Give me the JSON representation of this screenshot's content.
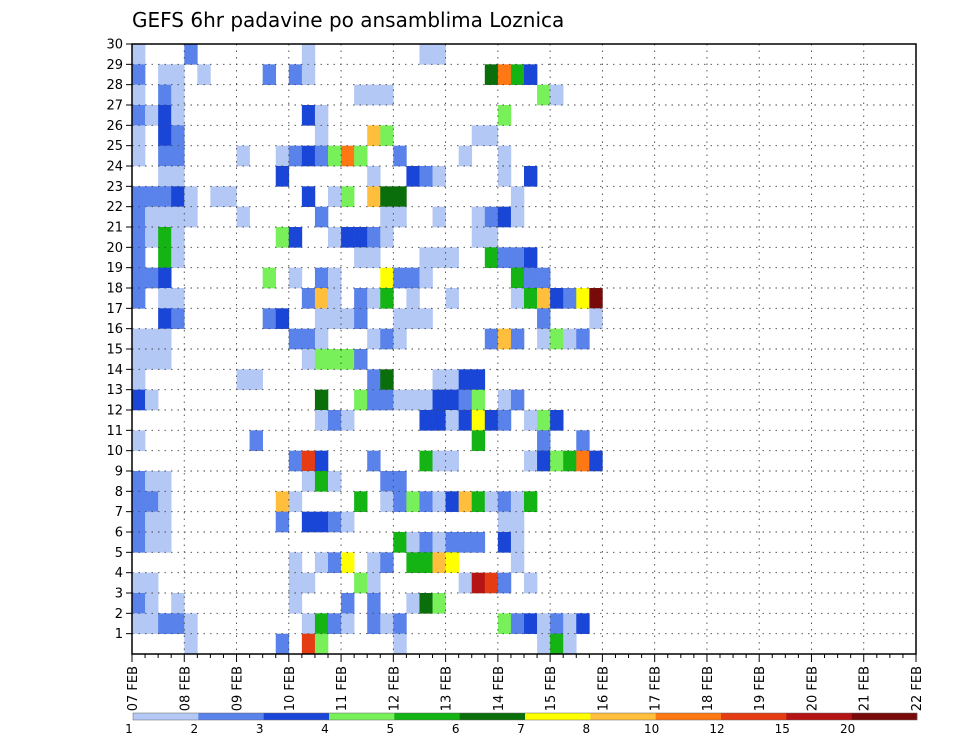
{
  "chart_data": {
    "type": "heatmap",
    "title": "GEFS 6hr padavine po ansamblima Loznica",
    "xlabel": "",
    "ylabel": "",
    "x_ticks": [
      "07 FEB",
      "08 FEB",
      "09 FEB",
      "10 FEB",
      "11 FEB",
      "12 FEB",
      "13 FEB",
      "14 FEB",
      "15 FEB",
      "16 FEB",
      "17 FEB",
      "18 FEB",
      "19 FEB",
      "20 FEB",
      "21 FEB",
      "22 FEB"
    ],
    "y_ticks": [
      1,
      2,
      3,
      4,
      5,
      6,
      7,
      8,
      9,
      10,
      11,
      12,
      13,
      14,
      15,
      16,
      17,
      18,
      19,
      20,
      21,
      22,
      23,
      24,
      25,
      26,
      27,
      28,
      29,
      30
    ],
    "xlim": [
      "07 FEB",
      "22 FEB"
    ],
    "ylim": [
      0,
      30
    ],
    "time_step_hours": 6,
    "grid": true,
    "legend": {
      "placement": "bottom",
      "boundaries": [
        "1",
        "2",
        "3",
        "4",
        "5",
        "6",
        "7",
        "8",
        "10",
        "12",
        "15",
        "20"
      ],
      "colors": [
        "#b4c8f5",
        "#5a82eb",
        "#1a46d8",
        "#78f05a",
        "#14b414",
        "#0a6e0a",
        "#ffff00",
        "#ffbe3c",
        "#ff7814",
        "#e63c14",
        "#b41414",
        "#780a0a"
      ]
    },
    "cells": [
      [
        0,
        30,
        0
      ],
      [
        4,
        30,
        1
      ],
      [
        13,
        30,
        0
      ],
      [
        22,
        30,
        0
      ],
      [
        23,
        30,
        0
      ],
      [
        0,
        29,
        1
      ],
      [
        2,
        29,
        0
      ],
      [
        3,
        29,
        0
      ],
      [
        5,
        29,
        0
      ],
      [
        10,
        29,
        1
      ],
      [
        12,
        29,
        1
      ],
      [
        13,
        29,
        0
      ],
      [
        27,
        29,
        5
      ],
      [
        28,
        29,
        8
      ],
      [
        29,
        29,
        4
      ],
      [
        30,
        29,
        2
      ],
      [
        0,
        28,
        0
      ],
      [
        2,
        28,
        1
      ],
      [
        3,
        28,
        0
      ],
      [
        17,
        28,
        0
      ],
      [
        18,
        28,
        0
      ],
      [
        19,
        28,
        0
      ],
      [
        31,
        28,
        3
      ],
      [
        32,
        28,
        0
      ],
      [
        0,
        27,
        1
      ],
      [
        1,
        27,
        0
      ],
      [
        2,
        27,
        2
      ],
      [
        3,
        27,
        0
      ],
      [
        13,
        27,
        2
      ],
      [
        14,
        27,
        0
      ],
      [
        28,
        27,
        3
      ],
      [
        0,
        26,
        0
      ],
      [
        2,
        26,
        2
      ],
      [
        3,
        26,
        1
      ],
      [
        14,
        26,
        0
      ],
      [
        18,
        26,
        7
      ],
      [
        19,
        26,
        3
      ],
      [
        26,
        26,
        0
      ],
      [
        27,
        26,
        0
      ],
      [
        0,
        25,
        0
      ],
      [
        2,
        25,
        1
      ],
      [
        3,
        25,
        1
      ],
      [
        8,
        25,
        0
      ],
      [
        11,
        25,
        0
      ],
      [
        12,
        25,
        1
      ],
      [
        13,
        25,
        2
      ],
      [
        14,
        25,
        1
      ],
      [
        15,
        25,
        3
      ],
      [
        16,
        25,
        8
      ],
      [
        17,
        25,
        3
      ],
      [
        20,
        25,
        1
      ],
      [
        25,
        25,
        0
      ],
      [
        28,
        25,
        0
      ],
      [
        2,
        24,
        0
      ],
      [
        3,
        24,
        0
      ],
      [
        11,
        24,
        2
      ],
      [
        18,
        24,
        0
      ],
      [
        21,
        24,
        2
      ],
      [
        22,
        24,
        1
      ],
      [
        23,
        24,
        0
      ],
      [
        28,
        24,
        0
      ],
      [
        30,
        24,
        2
      ],
      [
        0,
        23,
        1
      ],
      [
        1,
        23,
        1
      ],
      [
        2,
        23,
        1
      ],
      [
        3,
        23,
        2
      ],
      [
        4,
        23,
        0
      ],
      [
        6,
        23,
        0
      ],
      [
        7,
        23,
        0
      ],
      [
        13,
        23,
        2
      ],
      [
        15,
        23,
        0
      ],
      [
        16,
        23,
        3
      ],
      [
        18,
        23,
        7
      ],
      [
        19,
        23,
        5
      ],
      [
        20,
        23,
        5
      ],
      [
        29,
        23,
        0
      ],
      [
        0,
        22,
        1
      ],
      [
        1,
        22,
        0
      ],
      [
        2,
        22,
        0
      ],
      [
        3,
        22,
        0
      ],
      [
        4,
        22,
        0
      ],
      [
        8,
        22,
        0
      ],
      [
        14,
        22,
        1
      ],
      [
        19,
        22,
        0
      ],
      [
        20,
        22,
        0
      ],
      [
        23,
        22,
        0
      ],
      [
        26,
        22,
        0
      ],
      [
        27,
        22,
        1
      ],
      [
        28,
        22,
        2
      ],
      [
        29,
        22,
        0
      ],
      [
        0,
        21,
        1
      ],
      [
        1,
        21,
        0
      ],
      [
        2,
        21,
        4
      ],
      [
        3,
        21,
        0
      ],
      [
        11,
        21,
        3
      ],
      [
        12,
        21,
        2
      ],
      [
        15,
        21,
        0
      ],
      [
        16,
        21,
        2
      ],
      [
        17,
        21,
        2
      ],
      [
        18,
        21,
        1
      ],
      [
        19,
        21,
        0
      ],
      [
        26,
        21,
        0
      ],
      [
        27,
        21,
        0
      ],
      [
        0,
        20,
        1
      ],
      [
        2,
        20,
        4
      ],
      [
        3,
        20,
        0
      ],
      [
        17,
        20,
        0
      ],
      [
        18,
        20,
        0
      ],
      [
        22,
        20,
        0
      ],
      [
        23,
        20,
        0
      ],
      [
        24,
        20,
        0
      ],
      [
        27,
        20,
        4
      ],
      [
        28,
        20,
        1
      ],
      [
        29,
        20,
        1
      ],
      [
        30,
        20,
        2
      ],
      [
        0,
        19,
        1
      ],
      [
        1,
        19,
        1
      ],
      [
        2,
        19,
        2
      ],
      [
        10,
        19,
        3
      ],
      [
        12,
        19,
        0
      ],
      [
        14,
        19,
        1
      ],
      [
        15,
        19,
        0
      ],
      [
        19,
        19,
        6
      ],
      [
        20,
        19,
        1
      ],
      [
        21,
        19,
        1
      ],
      [
        22,
        19,
        0
      ],
      [
        29,
        19,
        4
      ],
      [
        30,
        19,
        1
      ],
      [
        31,
        19,
        1
      ],
      [
        0,
        18,
        1
      ],
      [
        2,
        18,
        0
      ],
      [
        3,
        18,
        0
      ],
      [
        13,
        18,
        1
      ],
      [
        14,
        18,
        7
      ],
      [
        15,
        18,
        0
      ],
      [
        17,
        18,
        1
      ],
      [
        18,
        18,
        0
      ],
      [
        19,
        18,
        4
      ],
      [
        21,
        18,
        0
      ],
      [
        24,
        18,
        0
      ],
      [
        29,
        18,
        0
      ],
      [
        30,
        18,
        4
      ],
      [
        31,
        18,
        7
      ],
      [
        32,
        18,
        2
      ],
      [
        33,
        18,
        1
      ],
      [
        34,
        18,
        6
      ],
      [
        35,
        18,
        11
      ],
      [
        2,
        17,
        2
      ],
      [
        3,
        17,
        1
      ],
      [
        10,
        17,
        1
      ],
      [
        11,
        17,
        2
      ],
      [
        14,
        17,
        0
      ],
      [
        15,
        17,
        0
      ],
      [
        16,
        17,
        0
      ],
      [
        17,
        17,
        1
      ],
      [
        20,
        17,
        0
      ],
      [
        21,
        17,
        0
      ],
      [
        22,
        17,
        0
      ],
      [
        31,
        17,
        1
      ],
      [
        35,
        17,
        0
      ],
      [
        0,
        16,
        0
      ],
      [
        1,
        16,
        0
      ],
      [
        2,
        16,
        0
      ],
      [
        12,
        16,
        1
      ],
      [
        13,
        16,
        1
      ],
      [
        14,
        16,
        0
      ],
      [
        18,
        16,
        0
      ],
      [
        19,
        16,
        1
      ],
      [
        20,
        16,
        0
      ],
      [
        27,
        16,
        1
      ],
      [
        28,
        16,
        7
      ],
      [
        29,
        16,
        1
      ],
      [
        31,
        16,
        0
      ],
      [
        32,
        16,
        3
      ],
      [
        33,
        16,
        0
      ],
      [
        34,
        16,
        1
      ],
      [
        0,
        15,
        0
      ],
      [
        1,
        15,
        0
      ],
      [
        2,
        15,
        0
      ],
      [
        13,
        15,
        0
      ],
      [
        14,
        15,
        3
      ],
      [
        15,
        15,
        3
      ],
      [
        16,
        15,
        3
      ],
      [
        17,
        15,
        1
      ],
      [
        0,
        14,
        0
      ],
      [
        8,
        14,
        0
      ],
      [
        9,
        14,
        0
      ],
      [
        18,
        14,
        1
      ],
      [
        19,
        14,
        5
      ],
      [
        23,
        14,
        0
      ],
      [
        24,
        14,
        0
      ],
      [
        25,
        14,
        2
      ],
      [
        26,
        14,
        2
      ],
      [
        0,
        13,
        2
      ],
      [
        1,
        13,
        0
      ],
      [
        14,
        13,
        5
      ],
      [
        17,
        13,
        3
      ],
      [
        18,
        13,
        1
      ],
      [
        19,
        13,
        1
      ],
      [
        20,
        13,
        0
      ],
      [
        21,
        13,
        0
      ],
      [
        22,
        13,
        0
      ],
      [
        23,
        13,
        2
      ],
      [
        24,
        13,
        2
      ],
      [
        25,
        13,
        1
      ],
      [
        26,
        13,
        3
      ],
      [
        28,
        13,
        0
      ],
      [
        29,
        13,
        1
      ],
      [
        14,
        12,
        0
      ],
      [
        15,
        12,
        1
      ],
      [
        16,
        12,
        0
      ],
      [
        22,
        12,
        2
      ],
      [
        23,
        12,
        2
      ],
      [
        24,
        12,
        0
      ],
      [
        25,
        12,
        2
      ],
      [
        26,
        12,
        6
      ],
      [
        27,
        12,
        2
      ],
      [
        28,
        12,
        1
      ],
      [
        30,
        12,
        0
      ],
      [
        31,
        12,
        3
      ],
      [
        32,
        12,
        2
      ],
      [
        0,
        11,
        0
      ],
      [
        9,
        11,
        1
      ],
      [
        26,
        11,
        4
      ],
      [
        31,
        11,
        1
      ],
      [
        34,
        11,
        1
      ],
      [
        12,
        10,
        1
      ],
      [
        13,
        10,
        9
      ],
      [
        14,
        10,
        2
      ],
      [
        18,
        10,
        1
      ],
      [
        22,
        10,
        4
      ],
      [
        23,
        10,
        0
      ],
      [
        24,
        10,
        0
      ],
      [
        30,
        10,
        0
      ],
      [
        31,
        10,
        2
      ],
      [
        32,
        10,
        3
      ],
      [
        33,
        10,
        4
      ],
      [
        34,
        10,
        8
      ],
      [
        35,
        10,
        2
      ],
      [
        0,
        9,
        1
      ],
      [
        1,
        9,
        0
      ],
      [
        2,
        9,
        0
      ],
      [
        13,
        9,
        0
      ],
      [
        14,
        9,
        4
      ],
      [
        15,
        9,
        0
      ],
      [
        19,
        9,
        1
      ],
      [
        20,
        9,
        1
      ],
      [
        0,
        8,
        1
      ],
      [
        1,
        8,
        1
      ],
      [
        2,
        8,
        0
      ],
      [
        11,
        8,
        7
      ],
      [
        12,
        8,
        0
      ],
      [
        17,
        8,
        4
      ],
      [
        19,
        8,
        0
      ],
      [
        20,
        8,
        1
      ],
      [
        21,
        8,
        3
      ],
      [
        22,
        8,
        1
      ],
      [
        23,
        8,
        0
      ],
      [
        24,
        8,
        2
      ],
      [
        25,
        8,
        7
      ],
      [
        26,
        8,
        4
      ],
      [
        27,
        8,
        0
      ],
      [
        28,
        8,
        1
      ],
      [
        29,
        8,
        0
      ],
      [
        30,
        8,
        4
      ],
      [
        0,
        7,
        1
      ],
      [
        1,
        7,
        0
      ],
      [
        2,
        7,
        0
      ],
      [
        11,
        7,
        1
      ],
      [
        13,
        7,
        2
      ],
      [
        14,
        7,
        2
      ],
      [
        15,
        7,
        1
      ],
      [
        16,
        7,
        0
      ],
      [
        28,
        7,
        0
      ],
      [
        29,
        7,
        0
      ],
      [
        0,
        6,
        1
      ],
      [
        1,
        6,
        0
      ],
      [
        2,
        6,
        0
      ],
      [
        20,
        6,
        4
      ],
      [
        21,
        6,
        0
      ],
      [
        22,
        6,
        1
      ],
      [
        23,
        6,
        0
      ],
      [
        24,
        6,
        1
      ],
      [
        25,
        6,
        1
      ],
      [
        26,
        6,
        1
      ],
      [
        28,
        6,
        2
      ],
      [
        29,
        6,
        0
      ],
      [
        12,
        5,
        0
      ],
      [
        14,
        5,
        0
      ],
      [
        15,
        5,
        1
      ],
      [
        16,
        5,
        6
      ],
      [
        18,
        5,
        0
      ],
      [
        19,
        5,
        1
      ],
      [
        21,
        5,
        4
      ],
      [
        22,
        5,
        4
      ],
      [
        23,
        5,
        7
      ],
      [
        24,
        5,
        6
      ],
      [
        29,
        5,
        0
      ],
      [
        0,
        4,
        0
      ],
      [
        1,
        4,
        0
      ],
      [
        12,
        4,
        0
      ],
      [
        13,
        4,
        0
      ],
      [
        17,
        4,
        3
      ],
      [
        18,
        4,
        0
      ],
      [
        25,
        4,
        0
      ],
      [
        26,
        4,
        10
      ],
      [
        27,
        4,
        9
      ],
      [
        28,
        4,
        1
      ],
      [
        30,
        4,
        0
      ],
      [
        0,
        3,
        1
      ],
      [
        1,
        3,
        0
      ],
      [
        3,
        3,
        0
      ],
      [
        12,
        3,
        0
      ],
      [
        16,
        3,
        1
      ],
      [
        18,
        3,
        1
      ],
      [
        21,
        3,
        0
      ],
      [
        22,
        3,
        5
      ],
      [
        23,
        3,
        3
      ],
      [
        0,
        2,
        0
      ],
      [
        1,
        2,
        0
      ],
      [
        2,
        2,
        1
      ],
      [
        3,
        2,
        1
      ],
      [
        4,
        2,
        0
      ],
      [
        13,
        2,
        0
      ],
      [
        14,
        2,
        4
      ],
      [
        15,
        2,
        1
      ],
      [
        16,
        2,
        0
      ],
      [
        18,
        2,
        1
      ],
      [
        19,
        2,
        0
      ],
      [
        20,
        2,
        1
      ],
      [
        28,
        2,
        3
      ],
      [
        29,
        2,
        1
      ],
      [
        30,
        2,
        2
      ],
      [
        31,
        2,
        0
      ],
      [
        32,
        2,
        1
      ],
      [
        33,
        2,
        0
      ],
      [
        34,
        2,
        2
      ],
      [
        4,
        1,
        0
      ],
      [
        11,
        1,
        1
      ],
      [
        13,
        1,
        9
      ],
      [
        14,
        1,
        3
      ],
      [
        20,
        1,
        0
      ],
      [
        31,
        1,
        0
      ],
      [
        32,
        1,
        4
      ],
      [
        33,
        1,
        0
      ]
    ]
  }
}
